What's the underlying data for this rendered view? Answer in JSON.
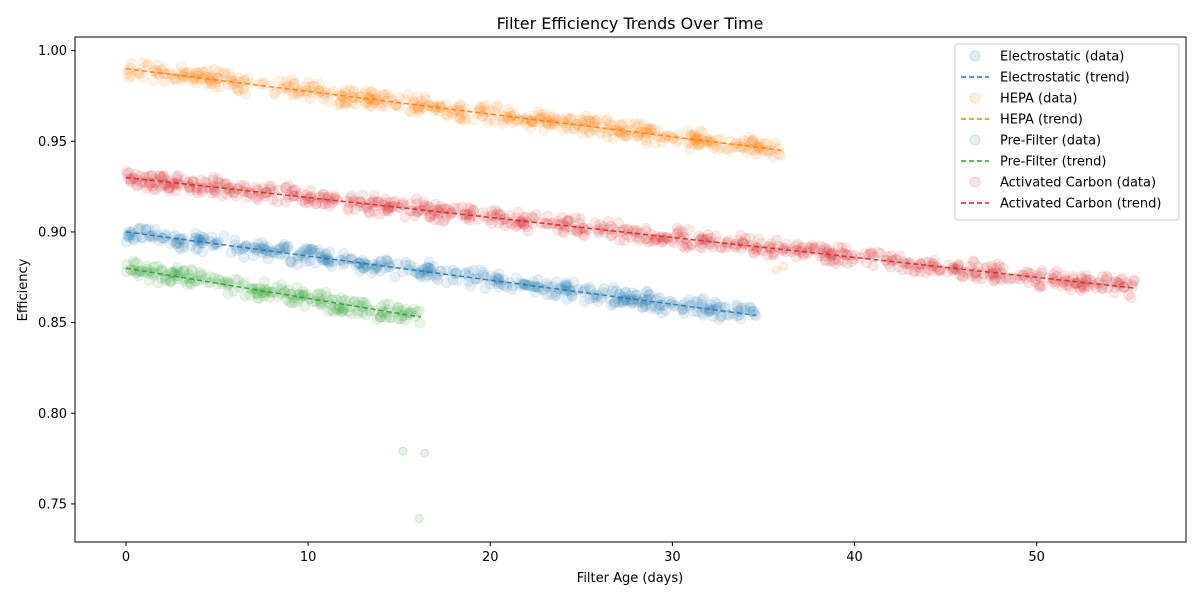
{
  "chart_data": {
    "type": "scatter",
    "title": "Filter Efficiency Trends Over Time",
    "xlabel": "Filter Age (days)",
    "ylabel": "Efficiency",
    "xlim": [
      -2.8,
      58.2
    ],
    "ylim": [
      0.729,
      1.0075
    ],
    "xticks": [
      0,
      10,
      20,
      30,
      40,
      50
    ],
    "yticks": [
      0.75,
      0.8,
      0.85,
      0.9,
      0.95,
      1.0
    ],
    "xtick_labels": [
      "0",
      "10",
      "20",
      "30",
      "40",
      "50"
    ],
    "ytick_labels": [
      "0.75",
      "0.80",
      "0.85",
      "0.90",
      "0.95",
      "1.00"
    ],
    "grid": false,
    "legend_position": "top-right",
    "series": [
      {
        "name": "Electrostatic",
        "data_label": "Electrostatic (data)",
        "trend_label": "Electrostatic (trend)",
        "color": "#1f77b4",
        "x_range": [
          0,
          34.6
        ],
        "trend": [
          [
            0,
            0.9
          ],
          [
            34.6,
            0.854
          ]
        ],
        "spread": 0.006,
        "outliers": []
      },
      {
        "name": "HEPA",
        "data_label": "HEPA (data)",
        "trend_label": "HEPA (trend)",
        "color": "#ff7f0e",
        "x_range": [
          0,
          36.0
        ],
        "trend": [
          [
            0,
            0.99
          ],
          [
            36.0,
            0.945
          ]
        ],
        "spread": 0.006,
        "outliers": [
          [
            35.7,
            0.879
          ],
          [
            36.1,
            0.881
          ]
        ]
      },
      {
        "name": "Pre-Filter",
        "data_label": "Pre-Filter (data)",
        "trend_label": "Pre-Filter (trend)",
        "color": "#2ca02c",
        "x_range": [
          0,
          16.2
        ],
        "trend": [
          [
            0,
            0.88
          ],
          [
            16.2,
            0.853
          ]
        ],
        "spread": 0.006,
        "outliers": [
          [
            15.2,
            0.779
          ],
          [
            16.4,
            0.778
          ],
          [
            16.1,
            0.742
          ]
        ]
      },
      {
        "name": "Activated Carbon",
        "data_label": "Activated Carbon (data)",
        "trend_label": "Activated Carbon (trend)",
        "color": "#d62728",
        "x_range": [
          0,
          55.4
        ],
        "trend": [
          [
            0,
            0.93
          ],
          [
            55.4,
            0.869
          ]
        ],
        "spread": 0.006,
        "outliers": []
      }
    ]
  }
}
